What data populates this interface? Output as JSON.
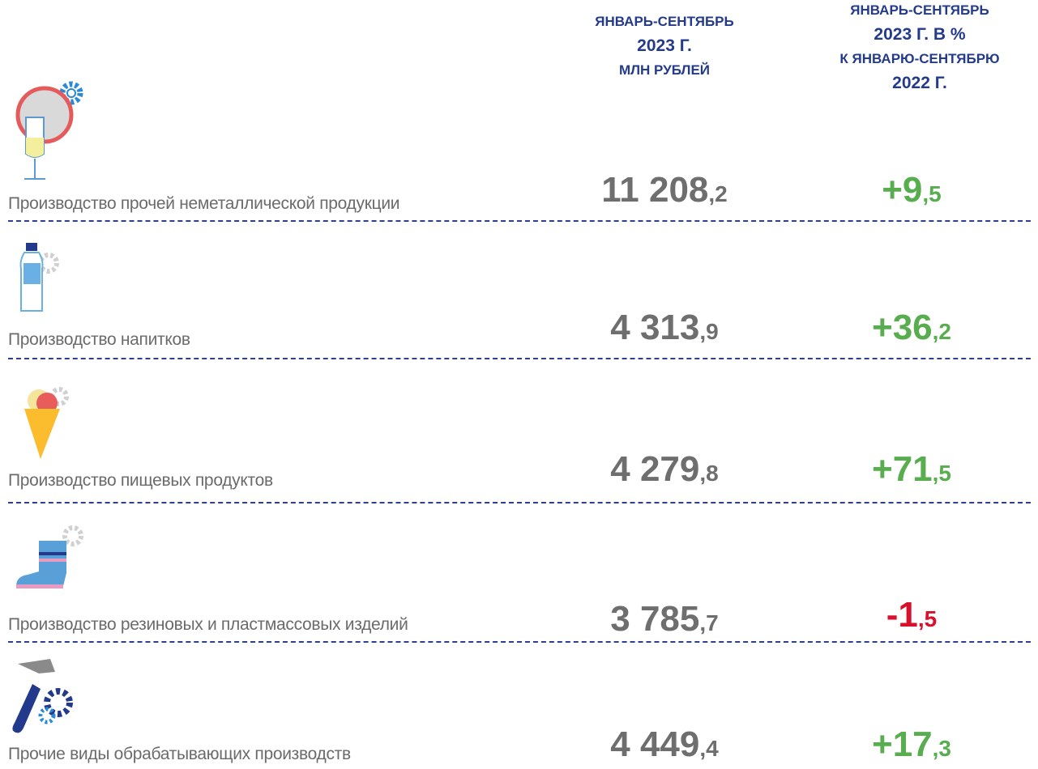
{
  "header": {
    "value_column": [
      "ЯНВАРЬ-СЕНТЯБРЬ",
      "2023 Г.",
      "МЛН РУБЛЕЙ"
    ],
    "change_column": [
      "ЯНВАРЬ-СЕНТЯБРЬ",
      "2023 Г. В %",
      "К ЯНВАРЮ-СЕНТЯБРЮ",
      "2022 Г."
    ]
  },
  "rows": [
    {
      "label": "Производство прочей неметаллической продукции",
      "value": {
        "whole": "11 208",
        "fraction": ",2"
      },
      "change": {
        "whole": "+9",
        "fraction": ",5",
        "color": "#58ad4f"
      }
    },
    {
      "label": "Производство напитков",
      "value": {
        "whole": "4 313",
        "fraction": ",9"
      },
      "change": {
        "whole": "+36",
        "fraction": ",2",
        "color": "#58ad4f"
      }
    },
    {
      "label": "Производство пищевых продуктов",
      "value": {
        "whole": "4 279",
        "fraction": ",8"
      },
      "change": {
        "whole": "+71",
        "fraction": ",5",
        "color": "#58ad4f"
      }
    },
    {
      "label": "Производство резиновых и пластмассовых изделий",
      "value": {
        "whole": "3 785",
        "fraction": ",7"
      },
      "change": {
        "whole": "-1",
        "fraction": ",5",
        "color": "#d9102c"
      }
    },
    {
      "label": "Прочие виды обрабатывающих производств",
      "value": {
        "whole": "4 449",
        "fraction": ",4"
      },
      "change": {
        "whole": "+17",
        "fraction": ",3",
        "color": "#58ad4f"
      }
    }
  ]
}
